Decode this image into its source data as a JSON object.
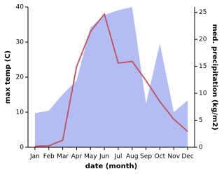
{
  "chart_data": {
    "type": "line-area",
    "x_label": "date (month)",
    "y_label": "max temp (C)",
    "y2_label": "med. precipitation (kg/m2)",
    "categories": [
      "Jan",
      "Feb",
      "Mar",
      "Apr",
      "May",
      "Jun",
      "Jul",
      "Aug",
      "Sep",
      "Oct",
      "Nov",
      "Dec"
    ],
    "series": [
      {
        "name": "med. precipitation",
        "kind": "area",
        "axis": "y2",
        "color": "#b3bdf3",
        "values": [
          6.3,
          6.8,
          9.8,
          12.4,
          22.2,
          24.5,
          25.4,
          26.0,
          8.1,
          19.2,
          6.5,
          8.7
        ]
      },
      {
        "name": "max temp",
        "kind": "line",
        "color": "#c0505a",
        "values": [
          0.3,
          0.4,
          2,
          23,
          33,
          38,
          24,
          24.5,
          19,
          13,
          8,
          4.5
        ]
      }
    ],
    "ylim": [
      0,
      40
    ],
    "yticks": [
      0,
      10,
      20,
      30,
      40
    ],
    "y2lim": [
      0,
      26
    ],
    "y2ticks": [
      0,
      5,
      10,
      15,
      20,
      25
    ]
  }
}
